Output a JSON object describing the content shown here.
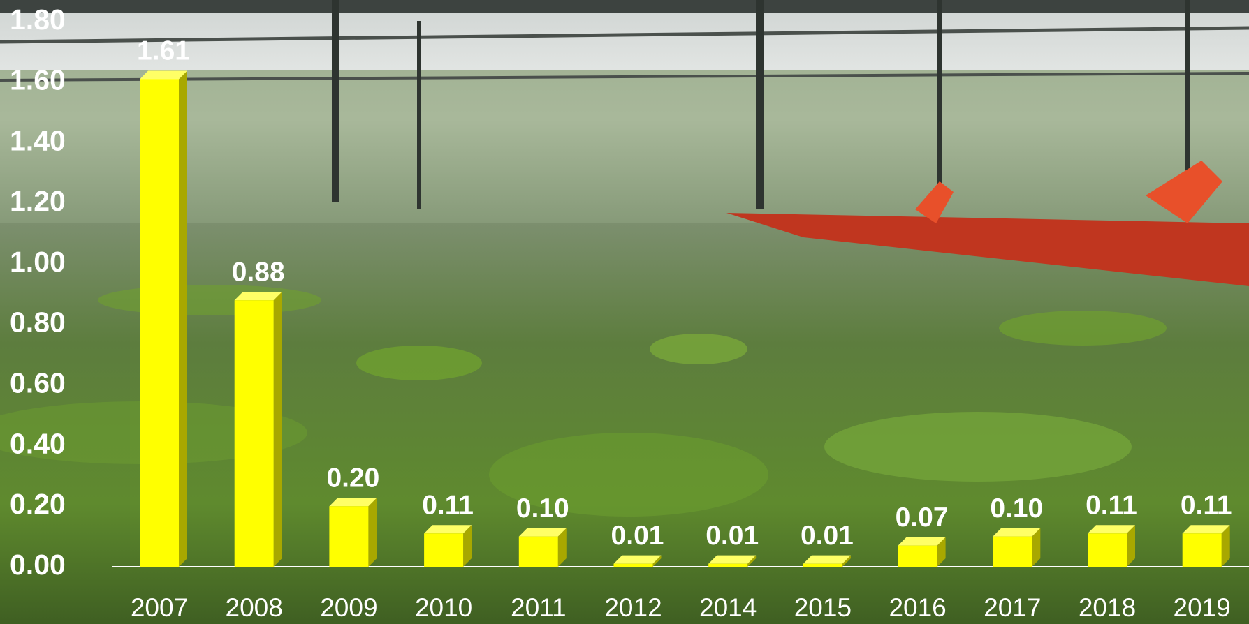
{
  "chart_data": {
    "type": "bar",
    "categories": [
      "2007",
      "2008",
      "2009",
      "2010",
      "2011",
      "2012",
      "2014",
      "2015",
      "2016",
      "2017",
      "2018",
      "2019"
    ],
    "values": [
      1.61,
      0.88,
      0.2,
      0.11,
      0.1,
      0.01,
      0.01,
      0.01,
      0.07,
      0.1,
      0.11,
      0.11
    ],
    "value_labels": [
      "1.61",
      "0.88",
      "0.20",
      "0.11",
      "0.10",
      "0.01",
      "0.01",
      "0.01",
      "0.07",
      "0.10",
      "0.11",
      "0.11"
    ],
    "color": "#ffff00",
    "ylim": [
      0,
      1.8
    ],
    "yticks": [
      {
        "value": 0,
        "label": "0.00"
      },
      {
        "value": 0.2,
        "label": "0.20"
      },
      {
        "value": 0.4,
        "label": "0.40"
      },
      {
        "value": 0.6,
        "label": "0.60"
      },
      {
        "value": 0.8,
        "label": "0.80"
      },
      {
        "value": 1.0,
        "label": "1.00"
      },
      {
        "value": 1.2,
        "label": "1.20"
      },
      {
        "value": 1.4,
        "label": "1.40"
      },
      {
        "value": 1.6,
        "label": "1.60"
      },
      {
        "value": 1.8,
        "label": "1.80"
      }
    ],
    "grid": false
  }
}
